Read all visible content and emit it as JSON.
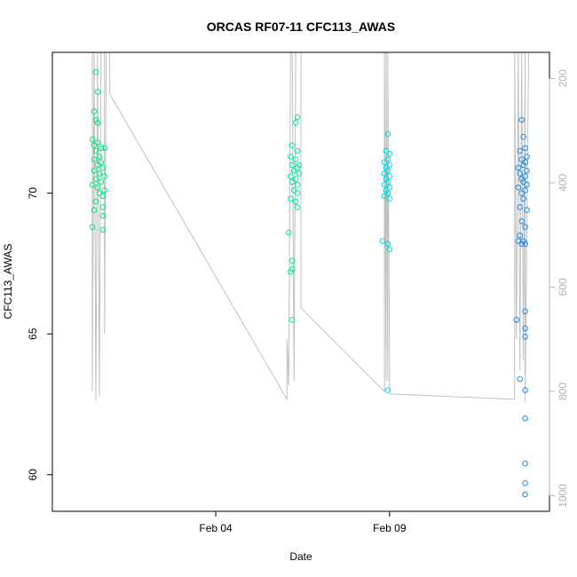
{
  "chart_data": {
    "type": "scatter",
    "title": "ORCAS RF07-11 CFC113_AWAS",
    "xlabel": "Date",
    "ylabel": "CFC113_AWAS",
    "x_ticks": [
      "Feb 04",
      "Feb 09"
    ],
    "x_tick_days": [
      4,
      9
    ],
    "x_range_days": [
      -0.7,
      13.6
    ],
    "y_ticks": [
      60,
      65,
      70
    ],
    "ylim": [
      58.7,
      75.0
    ],
    "y2_ticks": [
      200,
      400,
      600,
      800,
      1000
    ],
    "y2_range": [
      150,
      1030
    ],
    "y2_direction": "reversed",
    "grid": false,
    "colors": {
      "rf07": "#00e87a",
      "rf08": "#00e8a0",
      "rf09": "#00dde0",
      "rf10": "#1f8be8",
      "pressure_trace": "#c0c0c0",
      "axis": "#000000",
      "y2_axis": "#b0b0b0"
    },
    "series": [
      {
        "color_key": "rf07",
        "points": [
          [
            0.55,
            74.3
          ],
          [
            0.6,
            73.6
          ],
          [
            0.5,
            72.9
          ],
          [
            0.55,
            72.6
          ],
          [
            0.6,
            72.5
          ],
          [
            0.45,
            71.9
          ],
          [
            0.6,
            71.8
          ],
          [
            0.5,
            71.7
          ],
          [
            0.7,
            71.6
          ],
          [
            0.8,
            71.6
          ],
          [
            0.55,
            71.5
          ],
          [
            0.65,
            71.3
          ],
          [
            0.5,
            71.2
          ],
          [
            0.7,
            71.1
          ],
          [
            0.6,
            71.0
          ],
          [
            0.75,
            70.9
          ],
          [
            0.5,
            70.8
          ],
          [
            0.65,
            70.7
          ],
          [
            0.8,
            70.6
          ],
          [
            0.55,
            70.5
          ],
          [
            0.7,
            70.4
          ],
          [
            0.45,
            70.3
          ],
          [
            0.6,
            70.2
          ],
          [
            0.8,
            70.1
          ],
          [
            0.65,
            70.0
          ],
          [
            0.75,
            69.9
          ],
          [
            0.55,
            69.7
          ],
          [
            0.5,
            69.4
          ],
          [
            0.75,
            69.5
          ],
          [
            0.75,
            69.2
          ],
          [
            0.45,
            68.8
          ],
          [
            0.75,
            68.7
          ]
        ]
      },
      {
        "color_key": "rf08",
        "points": [
          [
            6.35,
            72.7
          ],
          [
            6.3,
            72.5
          ],
          [
            6.2,
            71.7
          ],
          [
            6.35,
            71.5
          ],
          [
            6.15,
            71.3
          ],
          [
            6.3,
            71.2
          ],
          [
            6.4,
            71.0
          ],
          [
            6.2,
            71.0
          ],
          [
            6.35,
            70.9
          ],
          [
            6.25,
            70.8
          ],
          [
            6.4,
            70.7
          ],
          [
            6.15,
            70.6
          ],
          [
            6.3,
            70.5
          ],
          [
            6.2,
            70.4
          ],
          [
            6.35,
            70.3
          ],
          [
            6.25,
            70.1
          ],
          [
            6.35,
            70.0
          ],
          [
            6.15,
            69.8
          ],
          [
            6.3,
            69.7
          ],
          [
            6.35,
            69.5
          ],
          [
            6.1,
            68.6
          ],
          [
            6.2,
            67.6
          ],
          [
            6.2,
            67.3
          ],
          [
            6.15,
            67.2
          ],
          [
            6.2,
            65.5
          ]
        ]
      },
      {
        "color_key": "rf09",
        "points": [
          [
            8.95,
            72.1
          ],
          [
            8.9,
            71.5
          ],
          [
            9.0,
            71.4
          ],
          [
            8.95,
            71.2
          ],
          [
            8.85,
            71.1
          ],
          [
            9.0,
            71.0
          ],
          [
            8.9,
            70.9
          ],
          [
            8.95,
            70.8
          ],
          [
            8.85,
            70.7
          ],
          [
            9.0,
            70.6
          ],
          [
            8.9,
            70.5
          ],
          [
            8.95,
            70.4
          ],
          [
            8.85,
            70.3
          ],
          [
            9.0,
            70.2
          ],
          [
            8.9,
            70.1
          ],
          [
            8.95,
            70.0
          ],
          [
            8.85,
            69.9
          ],
          [
            9.0,
            69.8
          ],
          [
            8.8,
            68.3
          ],
          [
            8.95,
            68.2
          ],
          [
            9.0,
            68.0
          ],
          [
            8.95,
            63.0
          ]
        ]
      },
      {
        "color_key": "rf10",
        "points": [
          [
            12.8,
            72.6
          ],
          [
            12.85,
            72.0
          ],
          [
            12.9,
            71.6
          ],
          [
            12.75,
            71.5
          ],
          [
            12.95,
            71.3
          ],
          [
            12.8,
            71.2
          ],
          [
            12.9,
            71.1
          ],
          [
            12.85,
            71.0
          ],
          [
            12.7,
            70.9
          ],
          [
            12.95,
            70.8
          ],
          [
            12.75,
            70.7
          ],
          [
            12.9,
            70.6
          ],
          [
            12.8,
            70.5
          ],
          [
            12.85,
            70.4
          ],
          [
            12.95,
            70.3
          ],
          [
            12.7,
            70.2
          ],
          [
            12.9,
            70.1
          ],
          [
            12.8,
            70.0
          ],
          [
            12.85,
            69.8
          ],
          [
            12.75,
            69.5
          ],
          [
            12.95,
            69.4
          ],
          [
            12.8,
            69.0
          ],
          [
            12.9,
            68.8
          ],
          [
            12.75,
            68.5
          ],
          [
            12.85,
            68.3
          ],
          [
            12.7,
            68.3
          ],
          [
            12.9,
            68.2
          ],
          [
            12.8,
            68.2
          ],
          [
            12.9,
            65.8
          ],
          [
            12.65,
            65.5
          ],
          [
            12.9,
            65.2
          ],
          [
            12.9,
            64.9
          ],
          [
            12.75,
            63.4
          ],
          [
            12.9,
            63.0
          ],
          [
            12.9,
            62.0
          ],
          [
            12.9,
            60.4
          ],
          [
            12.9,
            59.7
          ],
          [
            12.9,
            59.3
          ]
        ]
      }
    ],
    "pressure_line": [
      [
        0.45,
        150
      ],
      [
        0.45,
        800
      ],
      [
        0.5,
        150
      ],
      [
        0.55,
        820
      ],
      [
        0.6,
        150
      ],
      [
        0.65,
        810
      ],
      [
        0.7,
        150
      ],
      [
        0.8,
        150
      ],
      [
        0.8,
        690
      ],
      [
        0.85,
        150
      ],
      [
        0.95,
        150
      ],
      [
        0.95,
        230
      ],
      [
        6.05,
        815
      ],
      [
        6.05,
        700
      ],
      [
        6.1,
        790
      ],
      [
        6.15,
        150
      ],
      [
        6.2,
        150
      ],
      [
        6.25,
        780
      ],
      [
        6.3,
        150
      ],
      [
        6.35,
        150
      ],
      [
        6.4,
        150
      ],
      [
        6.45,
        150
      ],
      [
        6.45,
        640
      ],
      [
        8.85,
        800
      ],
      [
        8.85,
        150
      ],
      [
        8.9,
        780
      ],
      [
        8.9,
        150
      ],
      [
        8.95,
        780
      ],
      [
        8.95,
        150
      ],
      [
        9.0,
        780
      ],
      [
        9.0,
        805
      ],
      [
        12.6,
        815
      ],
      [
        12.6,
        150
      ],
      [
        12.65,
        700
      ],
      [
        12.7,
        150
      ],
      [
        12.75,
        760
      ],
      [
        12.8,
        150
      ],
      [
        12.85,
        740
      ],
      [
        12.9,
        150
      ],
      [
        12.9,
        820
      ],
      [
        13.0,
        150
      ]
    ]
  }
}
